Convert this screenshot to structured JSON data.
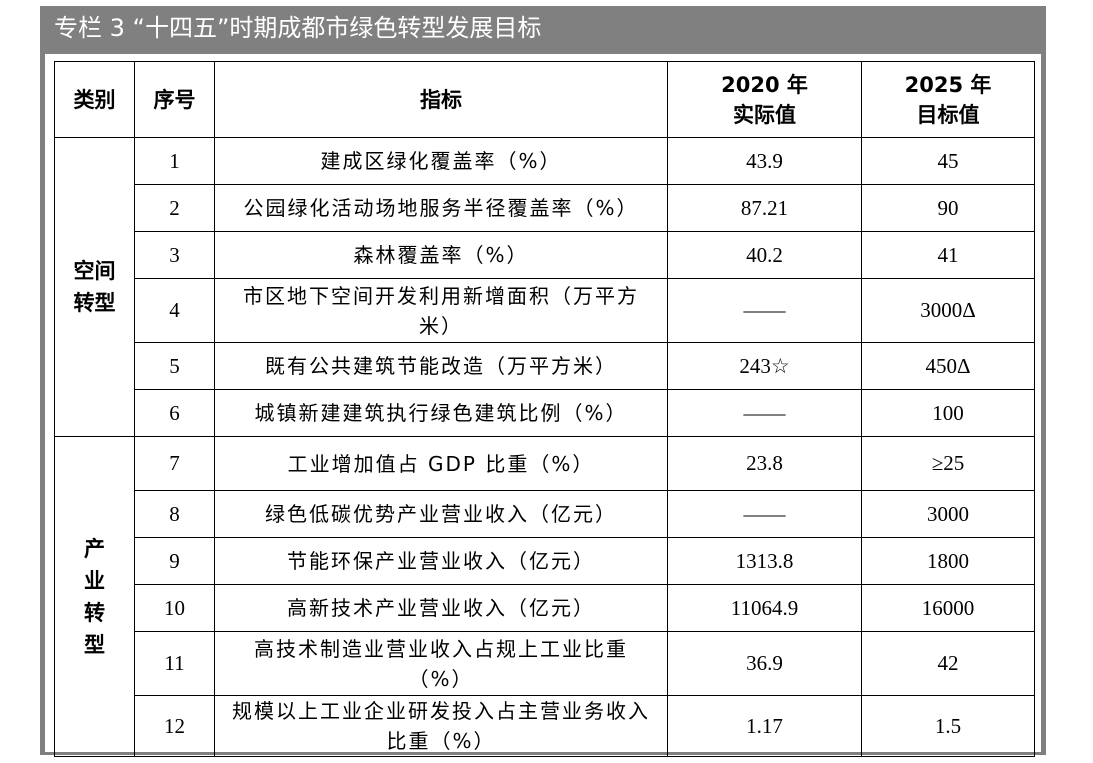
{
  "title": "专栏 3 “十四五”时期成都市绿色转型发展目标",
  "headers": {
    "category": "类别",
    "seq": "序号",
    "indicator": "指标",
    "y2020_line1": "2020 年",
    "y2020_line2": "实际值",
    "y2025_line1": "2025 年",
    "y2025_line2": "目标值"
  },
  "categories": {
    "space": "空间转型",
    "industry": "产业转型"
  },
  "rows": [
    {
      "seq": "1",
      "indicator": "建成区绿化覆盖率（%）",
      "v2020": "43.9",
      "v2025": "45"
    },
    {
      "seq": "2",
      "indicator": "公园绿化活动场地服务半径覆盖率（%）",
      "v2020": "87.21",
      "v2025": "90"
    },
    {
      "seq": "3",
      "indicator": "森林覆盖率（%）",
      "v2020": "40.2",
      "v2025": "41"
    },
    {
      "seq": "4",
      "indicator": "市区地下空间开发利用新增面积（万平方米）",
      "v2020": "——",
      "v2025": "3000Δ"
    },
    {
      "seq": "5",
      "indicator": "既有公共建筑节能改造（万平方米）",
      "v2020": "243☆",
      "v2025": "450Δ"
    },
    {
      "seq": "6",
      "indicator": "城镇新建建筑执行绿色建筑比例（%）",
      "v2020": "——",
      "v2025": "100"
    },
    {
      "seq": "7",
      "indicator": "工业增加值占 GDP 比重（%）",
      "v2020": "23.8",
      "v2025": "≥25"
    },
    {
      "seq": "8",
      "indicator": "绿色低碳优势产业营业收入（亿元）",
      "v2020": "——",
      "v2025": "3000"
    },
    {
      "seq": "9",
      "indicator": "节能环保产业营业收入（亿元）",
      "v2020": "1313.8",
      "v2025": "1800"
    },
    {
      "seq": "10",
      "indicator": "高新技术产业营业收入（亿元）",
      "v2020": "11064.9",
      "v2025": "16000"
    },
    {
      "seq": "11",
      "indicator": "高技术制造业营业收入占规上工业比重（%）",
      "v2020": "36.9",
      "v2025": "42"
    },
    {
      "seq": "12",
      "indicator": "规模以上工业企业研发投入占主营业务收入比重（%）",
      "v2020": "1.17",
      "v2025": "1.5"
    }
  ]
}
